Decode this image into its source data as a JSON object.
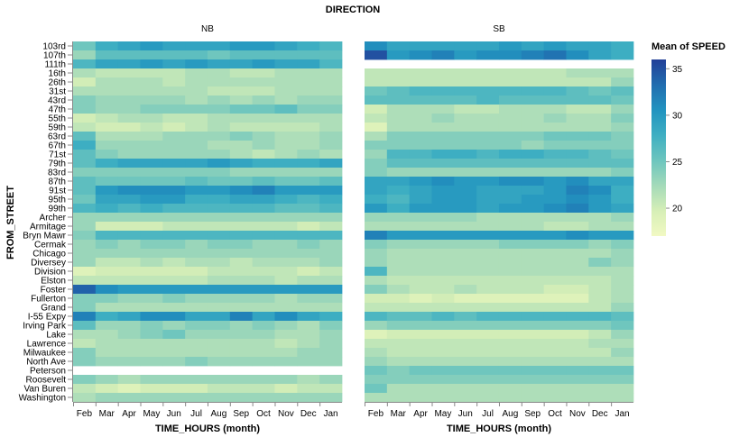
{
  "chart_data": {
    "type": "heatmap",
    "title": "DIRECTION",
    "facets": [
      "NB",
      "SB"
    ],
    "xlabel": "TIME_HOURS (month)",
    "ylabel": "FROM_STREET",
    "x_ticks": [
      "Feb",
      "Mar",
      "Apr",
      "May",
      "Jun",
      "Jul",
      "Aug",
      "Sep",
      "Oct",
      "Nov",
      "Dec",
      "Jan"
    ],
    "y_categories": [
      "103rd",
      "107th",
      "111th",
      "16th",
      "26th",
      "31st",
      "43rd",
      "47th",
      "55th",
      "59th",
      "63rd",
      "67th",
      "71st",
      "79th",
      "83rd",
      "87th",
      "91st",
      "95th",
      "99th",
      "Archer",
      "Armitage",
      "Bryn Mawr",
      "Cermak",
      "Chicago",
      "Diversey",
      "Division",
      "Elston",
      "Foster",
      "Fullerton",
      "Grand",
      "I-55 Expy",
      "Irving Park",
      "Lake",
      "Lawrence",
      "Milwaukee",
      "North Ave",
      "Peterson",
      "Roosevelt",
      "Van Buren",
      "Washington"
    ],
    "legend": {
      "title": "Mean of SPEED",
      "ticks": [
        35,
        30,
        25,
        20
      ],
      "domain": [
        17,
        36
      ],
      "colors": [
        "#f1f9c3",
        "#d7efb7",
        "#a6dbb9",
        "#6cc5be",
        "#3fafc2",
        "#2294c0",
        "#216fb0",
        "#223f98"
      ]
    },
    "values": {
      "NB": [
        [
          25,
          28,
          29,
          30,
          29,
          29,
          29,
          30,
          30,
          29,
          28,
          27
        ],
        [
          23,
          26,
          26,
          26,
          26,
          26,
          25,
          26,
          26,
          26,
          26,
          26
        ],
        [
          27,
          29,
          29,
          30,
          29,
          30,
          29,
          29,
          30,
          29,
          29,
          27
        ],
        [
          22,
          21,
          21,
          21,
          21,
          22,
          22,
          21,
          21,
          22,
          22,
          22
        ],
        [
          20,
          22,
          22,
          22,
          21,
          22,
          22,
          22,
          22,
          22,
          22,
          22
        ],
        [
          22,
          22,
          22,
          22,
          22,
          22,
          21,
          21,
          21,
          22,
          22,
          22
        ],
        [
          24,
          23,
          23,
          23,
          23,
          22,
          23,
          22,
          23,
          22,
          23,
          23
        ],
        [
          24,
          23,
          23,
          24,
          24,
          24,
          24,
          25,
          25,
          26,
          24,
          24
        ],
        [
          20,
          21,
          22,
          22,
          21,
          21,
          22,
          22,
          22,
          22,
          22,
          22
        ],
        [
          21,
          20,
          20,
          21,
          20,
          21,
          22,
          21,
          21,
          21,
          21,
          22
        ],
        [
          26,
          22,
          22,
          22,
          23,
          23,
          23,
          24,
          23,
          22,
          22,
          23
        ],
        [
          28,
          23,
          23,
          23,
          23,
          23,
          22,
          22,
          23,
          22,
          22,
          23
        ],
        [
          26,
          24,
          23,
          23,
          23,
          23,
          23,
          22,
          21,
          22,
          23,
          22
        ],
        [
          26,
          28,
          29,
          29,
          29,
          29,
          30,
          29,
          28,
          28,
          28,
          29
        ],
        [
          24,
          24,
          24,
          24,
          24,
          24,
          24,
          23,
          23,
          23,
          23,
          23
        ],
        [
          26,
          25,
          25,
          25,
          25,
          26,
          25,
          25,
          26,
          25,
          25,
          26
        ],
        [
          26,
          30,
          31,
          31,
          31,
          30,
          30,
          31,
          32,
          30,
          30,
          30
        ],
        [
          25,
          29,
          29,
          30,
          30,
          28,
          28,
          29,
          29,
          28,
          27,
          28
        ],
        [
          27,
          28,
          27,
          28,
          27,
          27,
          27,
          27,
          27,
          26,
          26,
          27
        ],
        [
          23,
          23,
          23,
          23,
          23,
          23,
          23,
          23,
          23,
          23,
          23,
          23
        ],
        [
          23,
          20,
          20,
          20,
          21,
          21,
          21,
          21,
          21,
          21,
          20,
          21
        ],
        [
          24,
          27,
          27,
          27,
          27,
          27,
          27,
          27,
          27,
          27,
          27,
          27
        ],
        [
          23,
          24,
          23,
          24,
          24,
          23,
          24,
          24,
          23,
          23,
          24,
          23
        ],
        [
          23,
          23,
          23,
          23,
          23,
          23,
          23,
          23,
          23,
          23,
          23,
          23
        ],
        [
          23,
          21,
          21,
          22,
          21,
          22,
          22,
          21,
          22,
          22,
          22,
          23
        ],
        [
          19,
          20,
          20,
          20,
          20,
          20,
          21,
          21,
          21,
          21,
          20,
          21
        ],
        [
          21,
          21,
          21,
          21,
          21,
          21,
          22,
          22,
          22,
          21,
          22,
          22
        ],
        [
          34,
          31,
          30,
          30,
          30,
          30,
          30,
          30,
          30,
          30,
          30,
          30
        ],
        [
          24,
          24,
          23,
          23,
          24,
          23,
          23,
          23,
          23,
          22,
          23,
          23
        ],
        [
          24,
          22,
          22,
          22,
          22,
          22,
          22,
          22,
          22,
          22,
          22,
          22
        ],
        [
          32,
          28,
          29,
          31,
          31,
          29,
          29,
          32,
          29,
          31,
          29,
          28
        ],
        [
          26,
          23,
          23,
          24,
          23,
          24,
          24,
          23,
          24,
          23,
          22,
          24
        ],
        [
          22,
          22,
          23,
          24,
          25,
          23,
          23,
          23,
          23,
          22,
          22,
          23
        ],
        [
          21,
          22,
          22,
          22,
          22,
          22,
          22,
          22,
          22,
          21,
          22,
          23
        ],
        [
          24,
          22,
          22,
          22,
          22,
          22,
          22,
          22,
          22,
          22,
          23,
          23
        ],
        [
          24,
          23,
          23,
          23,
          23,
          24,
          23,
          23,
          23,
          23,
          23,
          23
        ],
        [
          null,
          null,
          null,
          null,
          null,
          null,
          null,
          null,
          null,
          null,
          null,
          null
        ],
        [
          24,
          23,
          22,
          23,
          23,
          23,
          23,
          23,
          23,
          23,
          22,
          23
        ],
        [
          21,
          20,
          19,
          20,
          20,
          20,
          21,
          21,
          21,
          20,
          21,
          21
        ],
        [
          22,
          23,
          23,
          23,
          23,
          23,
          23,
          23,
          23,
          23,
          23,
          23
        ]
      ],
      "SB": [
        [
          31,
          29,
          29,
          29,
          29,
          29,
          30,
          29,
          30,
          29,
          29,
          28
        ],
        [
          35,
          30,
          31,
          32,
          30,
          31,
          31,
          32,
          33,
          31,
          29,
          28
        ],
        [
          null,
          null,
          null,
          null,
          null,
          null,
          null,
          null,
          null,
          null,
          null,
          null
        ],
        [
          21,
          21,
          21,
          21,
          21,
          21,
          21,
          21,
          21,
          22,
          22,
          22
        ],
        [
          21,
          21,
          21,
          21,
          21,
          21,
          21,
          21,
          21,
          21,
          21,
          23
        ],
        [
          25,
          26,
          27,
          27,
          27,
          27,
          27,
          27,
          27,
          26,
          25,
          26
        ],
        [
          26,
          26,
          26,
          26,
          26,
          27,
          26,
          26,
          26,
          26,
          26,
          25
        ],
        [
          20,
          22,
          22,
          22,
          21,
          21,
          22,
          22,
          22,
          21,
          21,
          23
        ],
        [
          21,
          22,
          22,
          23,
          22,
          22,
          22,
          22,
          23,
          22,
          22,
          24
        ],
        [
          19,
          22,
          22,
          22,
          22,
          22,
          22,
          22,
          22,
          22,
          22,
          23
        ],
        [
          22,
          24,
          24,
          24,
          24,
          24,
          24,
          24,
          25,
          25,
          25,
          24
        ],
        [
          24,
          24,
          24,
          24,
          24,
          24,
          24,
          23,
          24,
          24,
          24,
          24
        ],
        [
          23,
          27,
          27,
          28,
          28,
          27,
          28,
          28,
          27,
          27,
          26,
          25
        ],
        [
          24,
          26,
          26,
          26,
          26,
          26,
          26,
          26,
          26,
          26,
          26,
          26
        ],
        [
          24,
          23,
          23,
          23,
          23,
          23,
          23,
          23,
          23,
          23,
          23,
          24
        ],
        [
          29,
          29,
          30,
          31,
          30,
          30,
          31,
          31,
          30,
          31,
          29,
          29
        ],
        [
          29,
          28,
          29,
          30,
          30,
          29,
          29,
          29,
          30,
          32,
          31,
          28
        ],
        [
          28,
          27,
          29,
          30,
          30,
          29,
          29,
          30,
          30,
          31,
          30,
          28
        ],
        [
          30,
          28,
          30,
          30,
          30,
          29,
          30,
          30,
          31,
          32,
          30,
          29
        ],
        [
          23,
          23,
          23,
          23,
          23,
          22,
          22,
          22,
          22,
          22,
          22,
          23
        ],
        [
          22,
          22,
          22,
          22,
          22,
          22,
          22,
          22,
          21,
          21,
          22,
          22
        ],
        [
          32,
          30,
          30,
          30,
          30,
          30,
          30,
          30,
          30,
          31,
          30,
          30
        ],
        [
          24,
          23,
          23,
          23,
          23,
          23,
          24,
          24,
          24,
          24,
          23,
          24
        ],
        [
          23,
          22,
          22,
          22,
          22,
          22,
          22,
          22,
          22,
          22,
          22,
          23
        ],
        [
          23,
          22,
          22,
          22,
          22,
          22,
          22,
          22,
          22,
          22,
          24,
          23
        ],
        [
          27,
          22,
          22,
          22,
          22,
          22,
          22,
          22,
          22,
          22,
          22,
          22
        ],
        [
          22,
          21,
          21,
          21,
          21,
          21,
          21,
          21,
          21,
          21,
          21,
          22
        ],
        [
          24,
          22,
          21,
          21,
          22,
          21,
          21,
          21,
          20,
          20,
          21,
          22
        ],
        [
          20,
          20,
          19,
          20,
          19,
          19,
          19,
          19,
          19,
          19,
          21,
          22
        ],
        [
          21,
          21,
          21,
          21,
          21,
          21,
          21,
          21,
          21,
          21,
          21,
          23
        ],
        [
          27,
          26,
          26,
          27,
          26,
          27,
          27,
          27,
          27,
          27,
          27,
          26
        ],
        [
          23,
          24,
          24,
          24,
          24,
          24,
          24,
          24,
          24,
          24,
          24,
          25
        ],
        [
          19,
          20,
          20,
          20,
          20,
          20,
          20,
          20,
          20,
          20,
          21,
          23
        ],
        [
          21,
          21,
          21,
          21,
          21,
          21,
          21,
          21,
          21,
          21,
          22,
          22
        ],
        [
          22,
          21,
          21,
          21,
          21,
          21,
          21,
          21,
          21,
          21,
          21,
          23
        ],
        [
          23,
          22,
          22,
          22,
          22,
          22,
          22,
          22,
          22,
          22,
          22,
          22
        ],
        [
          25,
          24,
          25,
          25,
          25,
          25,
          25,
          25,
          25,
          25,
          25,
          25
        ],
        [
          24,
          24,
          24,
          24,
          24,
          24,
          24,
          24,
          24,
          24,
          24,
          24
        ],
        [
          25,
          22,
          22,
          22,
          22,
          22,
          22,
          22,
          22,
          22,
          22,
          22
        ],
        [
          22,
          22,
          22,
          22,
          22,
          22,
          22,
          22,
          22,
          22,
          22,
          22
        ]
      ]
    }
  }
}
